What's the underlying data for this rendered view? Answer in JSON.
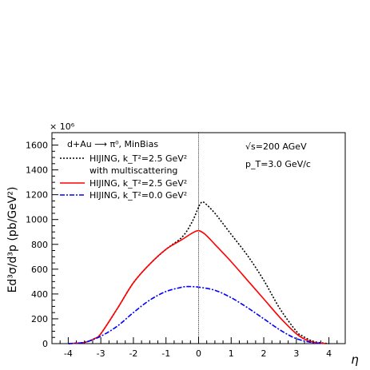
{
  "chart_data": {
    "type": "line",
    "xlabel": "η",
    "ylabel": "Ed³σ/d³p (pb/GeV²)",
    "y_multiplier": "× 10⁶",
    "xlim": [
      -4.5,
      4.5
    ],
    "ylim": [
      0,
      1700
    ],
    "x_ticks": [
      -4,
      -3,
      -2,
      -1,
      0,
      1,
      2,
      3,
      4
    ],
    "y_ticks": [
      0,
      200,
      400,
      600,
      800,
      1000,
      1200,
      1400,
      1600
    ],
    "reference_line_x": 0,
    "annotations": {
      "reaction": "d+Au ⟶ π⁰, MinBias",
      "energy": "√s=200 AGeV",
      "pt": "p_T=3.0 GeV/c"
    },
    "series": [
      {
        "name": "HIJING, k_T²=2.5 GeV² with multiscattering",
        "color": "#000000",
        "dash": "2,2",
        "x": [
          -4.0,
          -3.5,
          -3.2,
          -3.0,
          -2.5,
          -2.0,
          -1.5,
          -1.0,
          -0.5,
          -0.2,
          0.0,
          0.1,
          0.2,
          0.5,
          1.0,
          1.5,
          2.0,
          2.5,
          3.0,
          3.2,
          3.5,
          3.8,
          4.0
        ],
        "y": [
          0,
          10,
          40,
          80,
          280,
          490,
          640,
          760,
          860,
          980,
          1100,
          1140,
          1130,
          1050,
          880,
          710,
          510,
          280,
          100,
          60,
          20,
          5,
          0
        ]
      },
      {
        "name": "HIJING, k_T²=2.5 GeV²",
        "color": "#ff0000",
        "dash": "",
        "x": [
          -4.0,
          -3.5,
          -3.2,
          -3.0,
          -2.5,
          -2.0,
          -1.5,
          -1.0,
          -0.5,
          -0.2,
          0.0,
          0.2,
          0.5,
          1.0,
          1.5,
          2.0,
          2.5,
          3.0,
          3.3,
          3.6,
          3.9
        ],
        "y": [
          0,
          10,
          40,
          80,
          280,
          490,
          640,
          760,
          840,
          890,
          910,
          880,
          800,
          660,
          510,
          360,
          210,
          80,
          30,
          8,
          0
        ]
      },
      {
        "name": "HIJING, k_T²=0.0 GeV²",
        "color": "#0000ff",
        "dash": "6,2,2,2",
        "x": [
          -4.0,
          -3.5,
          -3.0,
          -2.5,
          -2.0,
          -1.5,
          -1.0,
          -0.5,
          -0.3,
          0.0,
          0.5,
          1.0,
          1.5,
          2.0,
          2.5,
          3.0,
          3.5,
          3.8
        ],
        "y": [
          0,
          10,
          60,
          140,
          250,
          350,
          420,
          455,
          460,
          455,
          430,
          370,
          290,
          200,
          110,
          40,
          8,
          0
        ]
      }
    ]
  }
}
